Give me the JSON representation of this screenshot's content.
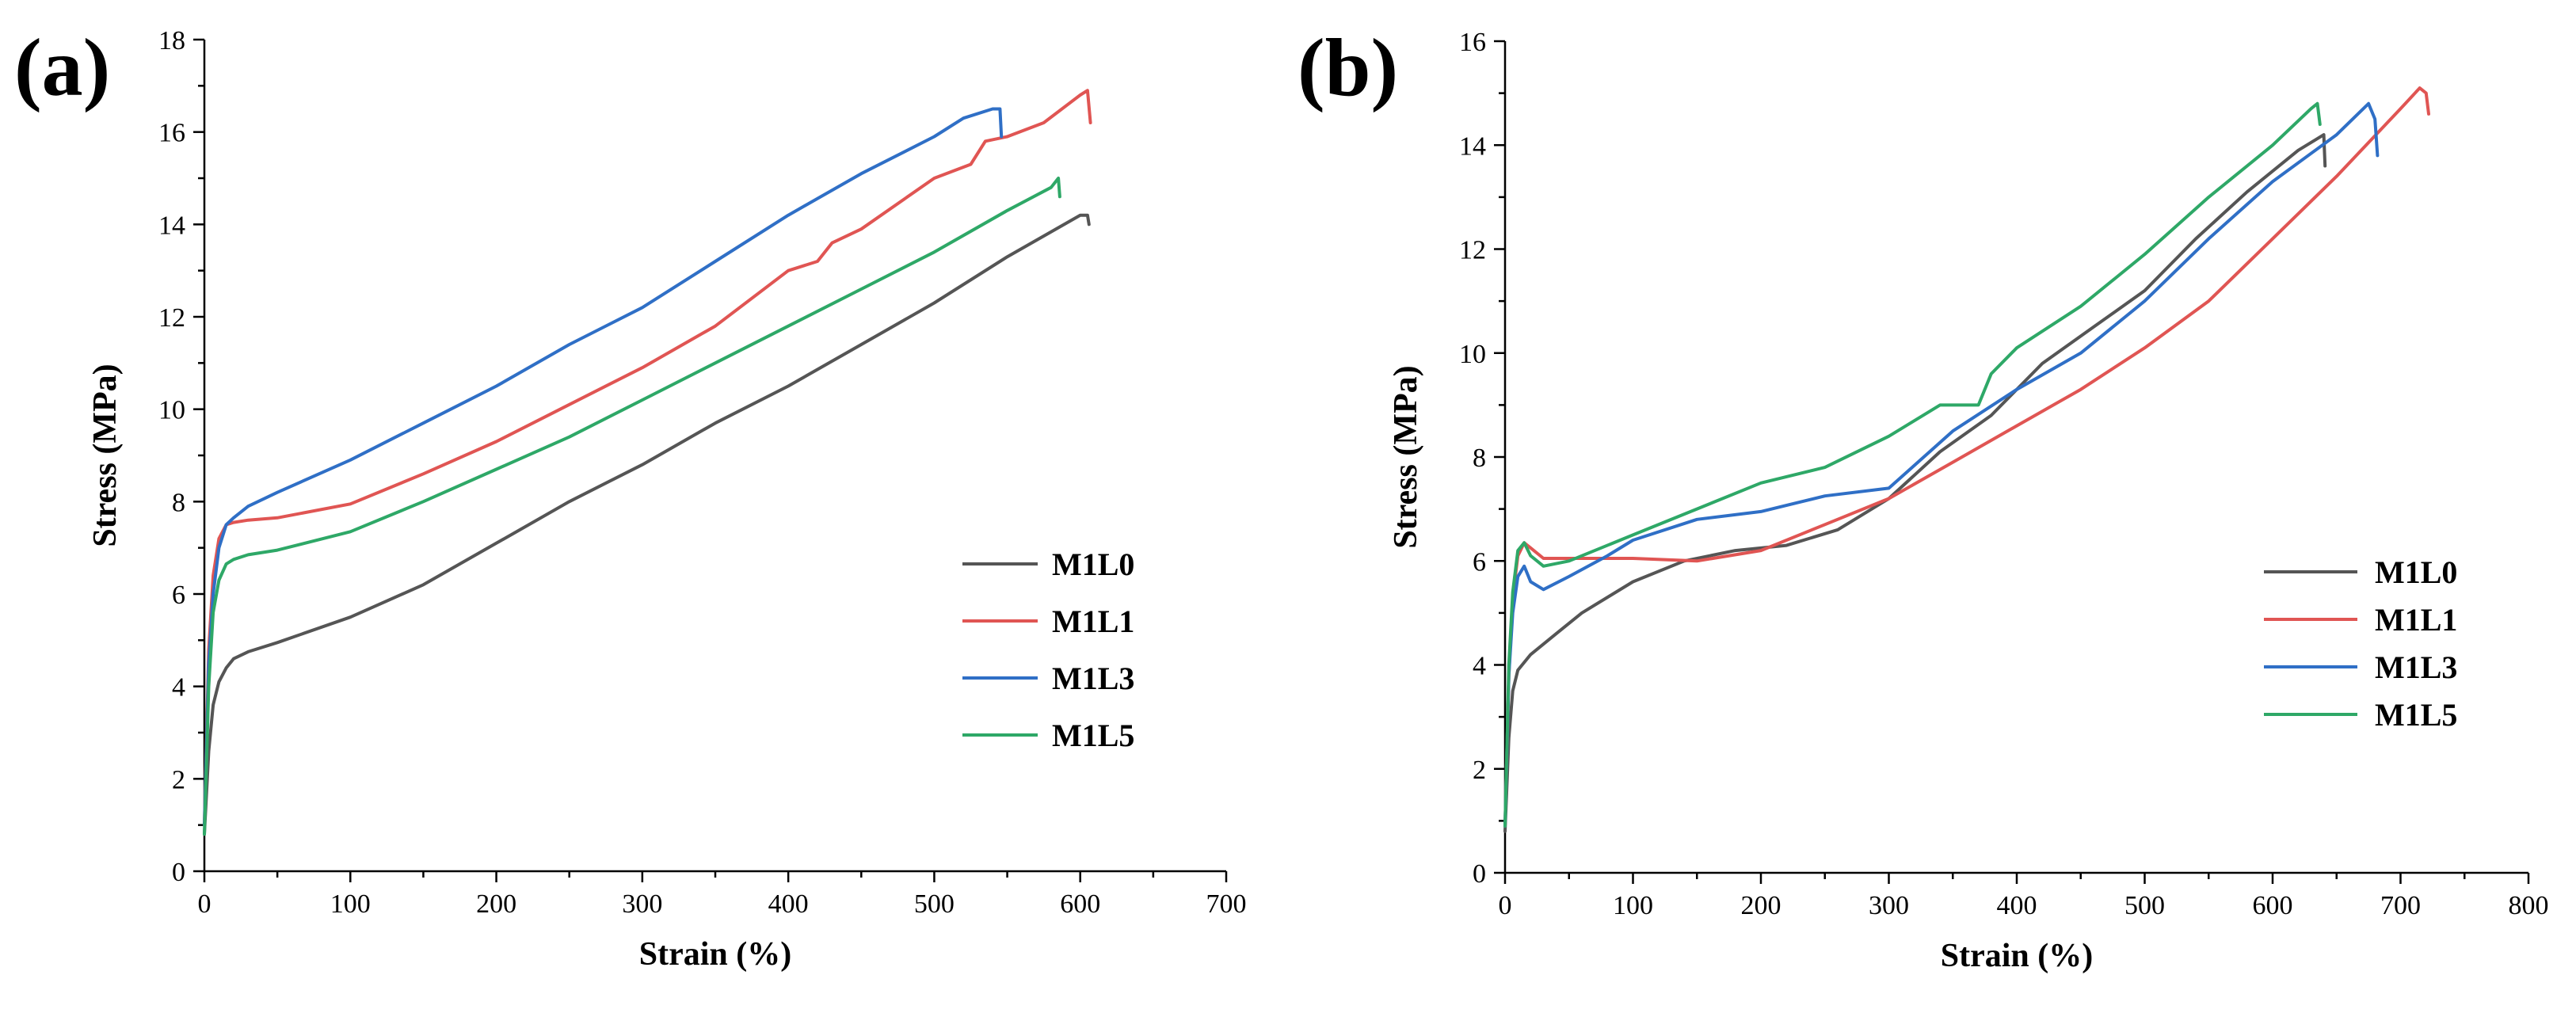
{
  "chart_data": [
    {
      "type": "line",
      "panel_label": "(a)",
      "xlabel": "Strain (%)",
      "ylabel": "Stress (MPa)",
      "xlim": [
        0,
        700
      ],
      "ylim": [
        0,
        18
      ],
      "xticks": [
        0,
        100,
        200,
        300,
        400,
        500,
        600,
        700
      ],
      "yticks": [
        0,
        2,
        4,
        6,
        8,
        10,
        12,
        14,
        16,
        18
      ],
      "grid": false,
      "legend_position": "lower-right",
      "series": [
        {
          "name": "M1L0",
          "color": "#555555",
          "x": [
            0,
            3,
            6,
            10,
            15,
            20,
            30,
            50,
            100,
            150,
            200,
            250,
            300,
            350,
            400,
            450,
            500,
            550,
            600,
            605,
            606
          ],
          "y": [
            0.8,
            2.6,
            3.6,
            4.1,
            4.4,
            4.6,
            4.75,
            4.95,
            5.5,
            6.2,
            7.1,
            8.0,
            8.8,
            9.7,
            10.5,
            11.4,
            12.3,
            13.3,
            14.2,
            14.2,
            14.0
          ]
        },
        {
          "name": "M1L1",
          "color": "#e05553",
          "x": [
            0,
            3,
            6,
            10,
            15,
            20,
            30,
            50,
            100,
            150,
            200,
            250,
            300,
            350,
            400,
            420,
            430,
            450,
            500,
            525,
            535,
            550,
            575,
            600,
            605,
            607
          ],
          "y": [
            1.0,
            4.8,
            6.4,
            7.2,
            7.5,
            7.55,
            7.6,
            7.65,
            7.95,
            8.6,
            9.3,
            10.1,
            10.9,
            11.8,
            13.0,
            13.2,
            13.6,
            13.9,
            15.0,
            15.3,
            15.8,
            15.9,
            16.2,
            16.8,
            16.9,
            16.2
          ]
        },
        {
          "name": "M1L3",
          "color": "#2f6fc6",
          "x": [
            0,
            3,
            6,
            10,
            15,
            20,
            30,
            50,
            100,
            150,
            200,
            250,
            300,
            350,
            400,
            450,
            500,
            520,
            540,
            545,
            546
          ],
          "y": [
            1.0,
            4.5,
            6.0,
            7.0,
            7.5,
            7.65,
            7.9,
            8.2,
            8.9,
            9.7,
            10.5,
            11.4,
            12.2,
            13.2,
            14.2,
            15.1,
            15.9,
            16.3,
            16.5,
            16.5,
            15.9
          ]
        },
        {
          "name": "M1L5",
          "color": "#2ea867",
          "x": [
            0,
            3,
            6,
            10,
            15,
            20,
            30,
            50,
            100,
            150,
            200,
            250,
            300,
            350,
            400,
            450,
            500,
            550,
            580,
            585,
            586
          ],
          "y": [
            0.8,
            4.0,
            5.6,
            6.3,
            6.65,
            6.75,
            6.85,
            6.95,
            7.35,
            8.0,
            8.7,
            9.4,
            10.2,
            11.0,
            11.8,
            12.6,
            13.4,
            14.3,
            14.8,
            15.0,
            14.6
          ]
        }
      ]
    },
    {
      "type": "line",
      "panel_label": "(b)",
      "xlabel": "Strain (%)",
      "ylabel": "Stress (MPa)",
      "xlim": [
        0,
        800
      ],
      "ylim": [
        0,
        16
      ],
      "xticks": [
        0,
        100,
        200,
        300,
        400,
        500,
        600,
        700,
        800
      ],
      "yticks": [
        0,
        2,
        4,
        6,
        8,
        10,
        12,
        14,
        16
      ],
      "grid": false,
      "legend_position": "center-right",
      "series": [
        {
          "name": "M1L0",
          "color": "#555555",
          "x": [
            0,
            3,
            6,
            10,
            20,
            40,
            60,
            100,
            140,
            180,
            220,
            260,
            300,
            340,
            380,
            420,
            460,
            500,
            540,
            580,
            620,
            640,
            641
          ],
          "y": [
            0.8,
            2.6,
            3.5,
            3.9,
            4.2,
            4.6,
            5.0,
            5.6,
            6.0,
            6.2,
            6.3,
            6.6,
            7.2,
            8.1,
            8.8,
            9.8,
            10.5,
            11.2,
            12.2,
            13.1,
            13.9,
            14.2,
            13.6
          ]
        },
        {
          "name": "M1L1",
          "color": "#e05553",
          "x": [
            0,
            3,
            6,
            10,
            15,
            20,
            30,
            50,
            100,
            150,
            200,
            250,
            300,
            350,
            400,
            450,
            500,
            550,
            600,
            650,
            700,
            715,
            720,
            722
          ],
          "y": [
            0.9,
            3.8,
            5.3,
            6.1,
            6.35,
            6.25,
            6.05,
            6.05,
            6.05,
            6.0,
            6.2,
            6.7,
            7.2,
            7.9,
            8.6,
            9.3,
            10.1,
            11.0,
            12.2,
            13.4,
            14.7,
            15.1,
            15.0,
            14.6
          ]
        },
        {
          "name": "M1L3",
          "color": "#2f6fc6",
          "x": [
            0,
            3,
            6,
            10,
            15,
            20,
            30,
            50,
            80,
            100,
            150,
            200,
            250,
            300,
            350,
            400,
            450,
            500,
            550,
            600,
            650,
            675,
            680,
            682
          ],
          "y": [
            0.9,
            3.8,
            5.0,
            5.7,
            5.9,
            5.6,
            5.45,
            5.7,
            6.1,
            6.4,
            6.8,
            6.95,
            7.25,
            7.4,
            8.5,
            9.3,
            10.0,
            11.0,
            12.2,
            13.3,
            14.2,
            14.8,
            14.5,
            13.8
          ]
        },
        {
          "name": "M1L5",
          "color": "#2ea867",
          "x": [
            0,
            3,
            6,
            10,
            15,
            20,
            30,
            50,
            100,
            150,
            200,
            250,
            300,
            340,
            370,
            380,
            400,
            450,
            500,
            550,
            600,
            630,
            635,
            637
          ],
          "y": [
            0.9,
            4.0,
            5.4,
            6.2,
            6.35,
            6.1,
            5.9,
            6.0,
            6.5,
            7.0,
            7.5,
            7.8,
            8.4,
            9.0,
            9.0,
            9.6,
            10.1,
            10.9,
            11.9,
            13.0,
            14.0,
            14.7,
            14.8,
            14.4
          ]
        }
      ]
    }
  ]
}
